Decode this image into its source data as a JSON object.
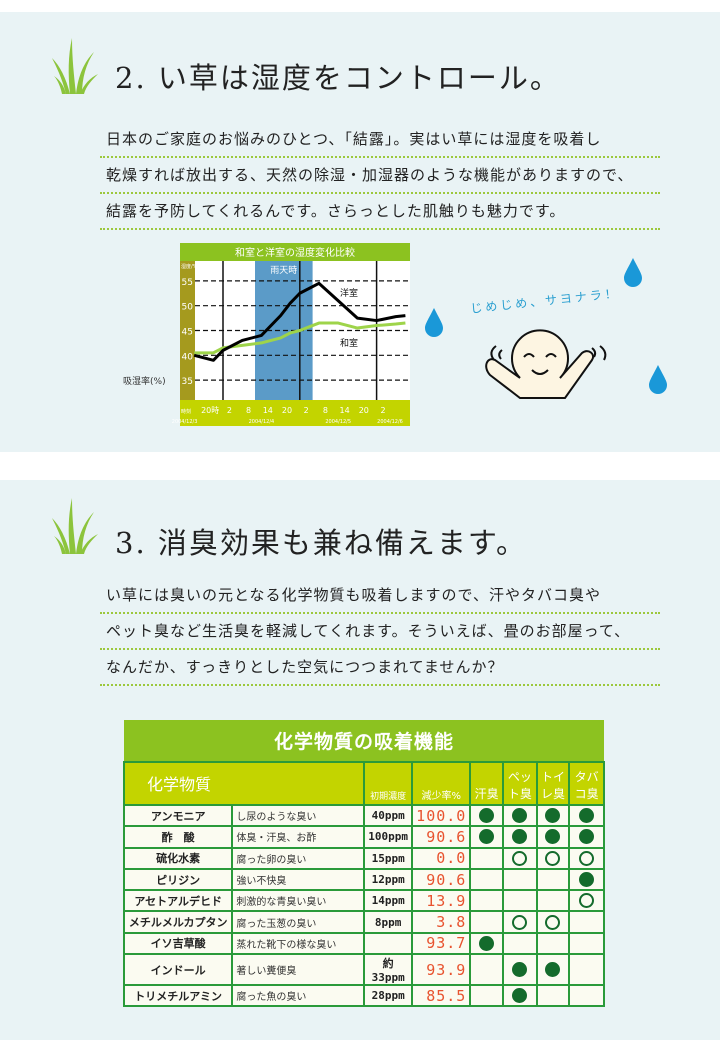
{
  "section2": {
    "number": "2.",
    "title": "い草は湿度をコントロール。",
    "lines": [
      "日本のご家庭のお悩みのひとつ、「結露」。実はい草には湿度を吸着し",
      "乾燥すれば放出する、天然の除湿・加湿器のような機能がありますので、",
      "結露を予防してくれるんです。さらっとした肌触りも魅力です。"
    ],
    "bubble": "じめじめ、サヨナラ！"
  },
  "chart_data": {
    "type": "line",
    "title": "和室と洋室の湿度変化比較",
    "ylabel": "湿度/%rh",
    "outer_label": "吸湿率(%)",
    "ylim": [
      31,
      59
    ],
    "yticks": [
      35,
      40,
      45,
      50,
      55
    ],
    "grid": "dashed horizontal",
    "band": {
      "label": "雨天時",
      "from": "12/4 10:00",
      "to": "12/5 4:00",
      "color": "#5b9bc8"
    },
    "time_label": "時刻",
    "xtick_labels": [
      "20時",
      "2",
      "8",
      "14",
      "20",
      "2",
      "8",
      "14",
      "20",
      "2"
    ],
    "date_labels": [
      "2004/12/3",
      "2004/12/4",
      "2004/12/5",
      "2004/12/6"
    ],
    "x": [
      "12/3 15:00",
      "12/3 18:00",
      "12/3 21:00",
      "12/4 0:00",
      "12/4 6:00",
      "12/4 12:00",
      "12/4 18:00",
      "12/4 21:00",
      "12/5 0:00",
      "12/5 6:00",
      "12/5 12:00",
      "12/5 18:00",
      "12/6 0:00",
      "12/6 6:00",
      "12/6 9:00"
    ],
    "series": [
      {
        "name": "洋室",
        "color": "#000000",
        "values": [
          40,
          39.5,
          39,
          41,
          43,
          44,
          48,
          50.5,
          52.5,
          54.5,
          51,
          47.5,
          47,
          47.8,
          48
        ]
      },
      {
        "name": "和室",
        "color": "#9ed44a",
        "values": [
          40.5,
          40.5,
          40.5,
          41.5,
          42,
          42.5,
          43.5,
          44.5,
          45,
          46.5,
          46.5,
          45.5,
          46,
          46.3,
          46.5
        ]
      }
    ]
  },
  "section3": {
    "number": "3.",
    "title": "消臭効果も兼ね備えます。",
    "lines": [
      "い草には臭いの元となる化学物質も吸着しますので、汗やタバコ臭や",
      "ペット臭など生活臭を軽減してくれます。そういえば、畳のお部屋って、",
      "なんだか、すっきりとした空気につつまれてませんか？"
    ]
  },
  "table": {
    "title": "化学物質の吸着機能",
    "headers": {
      "substance": "化学物質",
      "conc": "初期濃度",
      "rate": "減少率%",
      "odors": [
        "汗臭",
        "ペット臭",
        "トイレ臭",
        "タバコ臭"
      ]
    },
    "rows": [
      {
        "name": "アンモニア",
        "desc": "し尿のような臭い",
        "conc": "40ppm",
        "rate": "100.0",
        "marks": [
          "full",
          "full",
          "full",
          "full"
        ]
      },
      {
        "name": "酢　酸",
        "desc": "体臭・汗臭、お酢",
        "conc": "100ppm",
        "rate": "90.6",
        "marks": [
          "full",
          "full",
          "full",
          "full"
        ]
      },
      {
        "name": "硫化水素",
        "desc": "腐った卵の臭い",
        "conc": "15ppm",
        "rate": "0.0",
        "marks": [
          "",
          "open",
          "open",
          "open"
        ]
      },
      {
        "name": "ピリジン",
        "desc": "強い不快臭",
        "conc": "12ppm",
        "rate": "90.6",
        "marks": [
          "",
          "",
          "",
          "full"
        ]
      },
      {
        "name": "アセトアルデヒド",
        "desc": "刺激的な青臭い臭い",
        "conc": "14ppm",
        "rate": "13.9",
        "marks": [
          "",
          "",
          "",
          "open"
        ]
      },
      {
        "name": "メチルメルカプタン",
        "desc": "腐った玉葱の臭い",
        "conc": "8ppm",
        "rate": "3.8",
        "marks": [
          "",
          "open",
          "open",
          ""
        ]
      },
      {
        "name": "イソ吉草酸",
        "desc": "蒸れた靴下の様な臭い",
        "conc": "",
        "rate": "93.7",
        "marks": [
          "full",
          "",
          "",
          ""
        ]
      },
      {
        "name": "インドール",
        "desc": "著しい糞便臭",
        "conc": "約33ppm",
        "rate": "93.9",
        "marks": [
          "",
          "full",
          "full",
          ""
        ]
      },
      {
        "name": "トリメチルアミン",
        "desc": "腐った魚の臭い",
        "conc": "28ppm",
        "rate": "85.5",
        "marks": [
          "",
          "full",
          "",
          ""
        ]
      }
    ]
  }
}
